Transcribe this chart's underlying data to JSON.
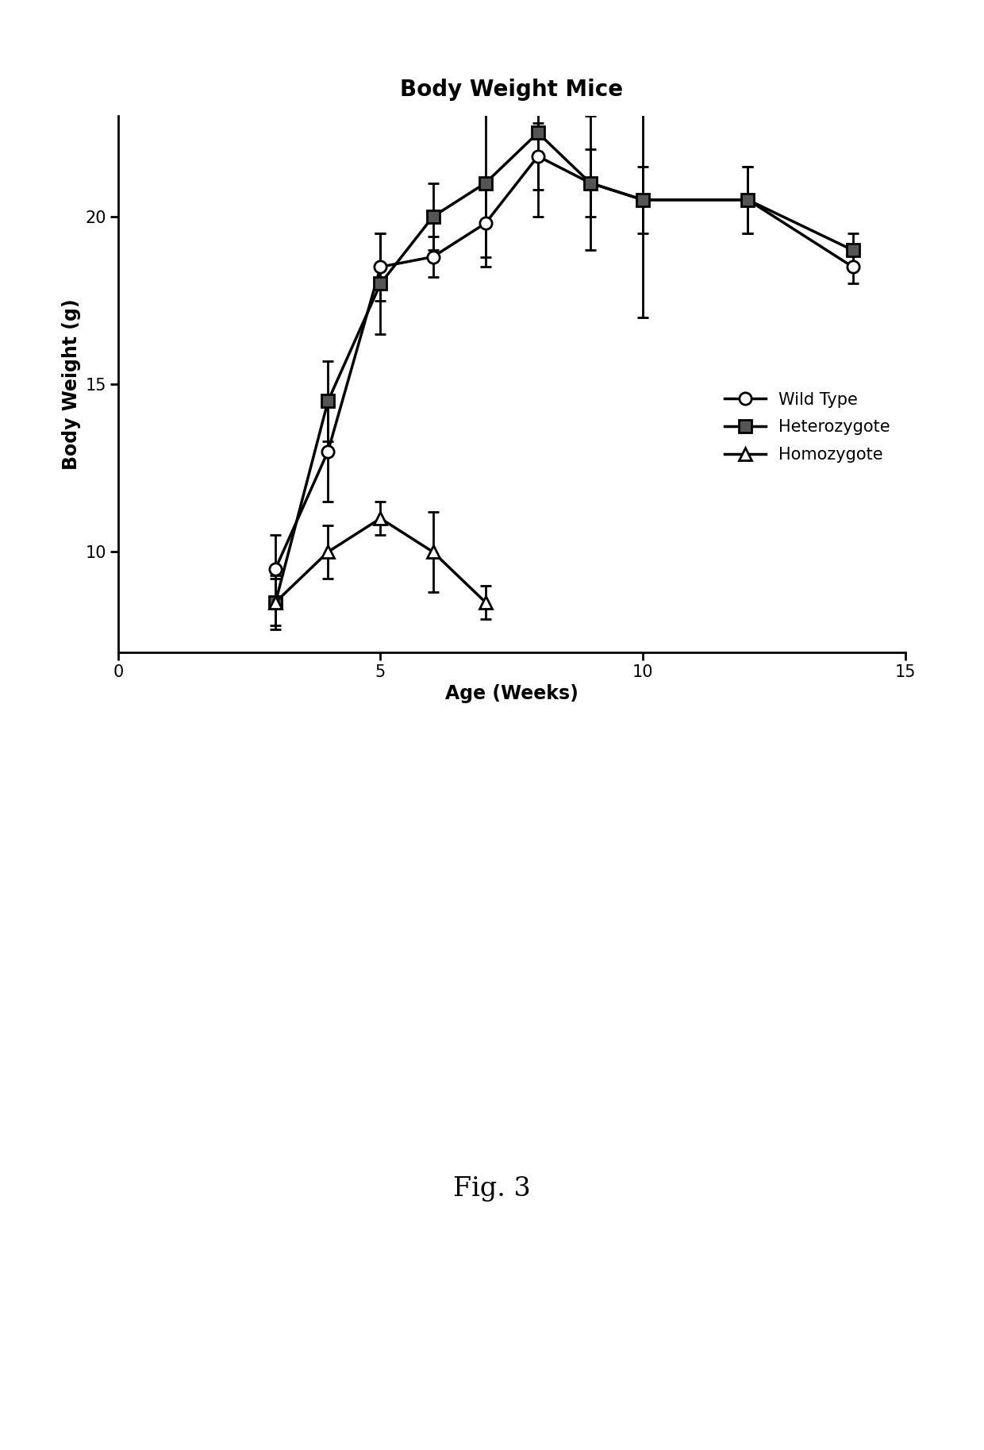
{
  "title": "Body Weight Mice",
  "xlabel": "Age (Weeks)",
  "ylabel": "Body Weight (g)",
  "xlim": [
    0,
    15
  ],
  "ylim": [
    7,
    23
  ],
  "xticks": [
    0,
    5,
    10,
    15
  ],
  "yticks": [
    10,
    15,
    20
  ],
  "fig_caption": "Fig. 3",
  "wild_type": {
    "x": [
      3,
      4,
      5,
      6,
      7,
      8,
      9,
      10,
      12,
      14
    ],
    "y": [
      9.5,
      13.0,
      18.5,
      18.8,
      19.8,
      21.8,
      21.0,
      20.5,
      20.5,
      18.5
    ],
    "yerr": [
      1.0,
      1.5,
      1.0,
      0.6,
      1.0,
      1.0,
      1.0,
      1.0,
      1.0,
      0.5
    ],
    "label": "Wild Type"
  },
  "heterozygote": {
    "x": [
      3,
      4,
      5,
      6,
      7,
      8,
      9,
      10,
      12,
      14
    ],
    "y": [
      8.5,
      14.5,
      18.0,
      20.0,
      21.0,
      22.5,
      21.0,
      20.5,
      20.5,
      19.0
    ],
    "yerr": [
      0.8,
      1.2,
      1.5,
      1.0,
      2.5,
      2.5,
      2.0,
      3.5,
      1.0,
      0.5
    ],
    "label": "Heterozygote"
  },
  "homozygote": {
    "x": [
      3,
      4,
      5,
      6,
      7
    ],
    "y": [
      8.5,
      10.0,
      11.0,
      10.0,
      8.5
    ],
    "yerr": [
      0.7,
      0.8,
      0.5,
      1.2,
      0.5
    ],
    "label": "Homozygote"
  },
  "line_color": "#000000",
  "background_color": "#ffffff",
  "title_fontsize": 20,
  "label_fontsize": 17,
  "tick_fontsize": 15,
  "legend_fontsize": 15,
  "caption_fontsize": 24,
  "lw": 2.5,
  "ms": 11,
  "capsize": 5,
  "capthick": 2.0,
  "elinewidth": 2.0
}
